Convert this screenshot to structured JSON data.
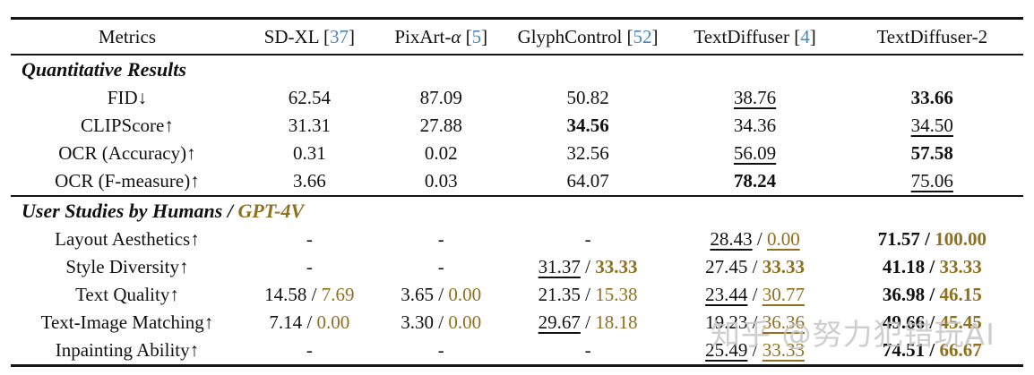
{
  "colors": {
    "citation_blue": "#4d87b8",
    "accent_gold": "#8e701f",
    "watermark_gray": "#c6c6c6",
    "rule_black": "#151515"
  },
  "watermark": {
    "text": "知乎 @努力犯错玩AI"
  },
  "table": {
    "header": {
      "columns": [
        {
          "name": "metrics",
          "segments": [
            {
              "t": "Metrics"
            }
          ]
        },
        {
          "name": "sd-xl",
          "segments": [
            {
              "t": "SD-XL ["
            },
            {
              "t": "37",
              "c": true
            },
            {
              "t": "]"
            }
          ]
        },
        {
          "name": "pixart-alpha",
          "segments": [
            {
              "t": "PixArt-"
            },
            {
              "t": "α",
              "i": true
            },
            {
              "t": " ["
            },
            {
              "t": "5",
              "c": true
            },
            {
              "t": "]"
            }
          ]
        },
        {
          "name": "glyphcontrol",
          "segments": [
            {
              "t": "GlyphControl ["
            },
            {
              "t": "52",
              "c": true
            },
            {
              "t": "]"
            }
          ]
        },
        {
          "name": "textdiffuser",
          "segments": [
            {
              "t": "TextDiffuser ["
            },
            {
              "t": "4",
              "c": true
            },
            {
              "t": "]"
            }
          ]
        },
        {
          "name": "textdiffuser-2",
          "segments": [
            {
              "t": "TextDiffuser-2"
            }
          ]
        }
      ]
    },
    "sections": [
      {
        "title_segments": [
          {
            "t": "Quantitative Results"
          }
        ],
        "rows": [
          {
            "label": "FID↓",
            "cells": [
              [
                {
                  "t": "62.54"
                }
              ],
              [
                {
                  "t": "87.09"
                }
              ],
              [
                {
                  "t": "50.82"
                }
              ],
              [
                {
                  "t": "38.76",
                  "u": true
                }
              ],
              [
                {
                  "t": "33.66",
                  "b": true
                }
              ]
            ]
          },
          {
            "label": "CLIPScore↑",
            "cells": [
              [
                {
                  "t": "31.31"
                }
              ],
              [
                {
                  "t": "27.88"
                }
              ],
              [
                {
                  "t": "34.56",
                  "b": true
                }
              ],
              [
                {
                  "t": "34.36"
                }
              ],
              [
                {
                  "t": "34.50",
                  "u": true
                }
              ]
            ]
          },
          {
            "label": "OCR (Accuracy)↑",
            "cells": [
              [
                {
                  "t": "0.31"
                }
              ],
              [
                {
                  "t": "0.02"
                }
              ],
              [
                {
                  "t": "32.56"
                }
              ],
              [
                {
                  "t": "56.09",
                  "u": true
                }
              ],
              [
                {
                  "t": "57.58",
                  "b": true
                }
              ]
            ]
          },
          {
            "label": "OCR (F-measure)↑",
            "cells": [
              [
                {
                  "t": "3.66"
                }
              ],
              [
                {
                  "t": "0.03"
                }
              ],
              [
                {
                  "t": "64.07"
                }
              ],
              [
                {
                  "t": "78.24",
                  "b": true
                }
              ],
              [
                {
                  "t": "75.06",
                  "u": true
                }
              ]
            ]
          }
        ]
      },
      {
        "title_segments": [
          {
            "t": "User Studies by Humans / "
          },
          {
            "t": "GPT-4V",
            "g": true
          }
        ],
        "rows": [
          {
            "label": "Layout Aesthetics↑",
            "cells": [
              [
                {
                  "t": "-"
                }
              ],
              [
                {
                  "t": "-"
                }
              ],
              [
                {
                  "t": "-"
                }
              ],
              [
                {
                  "t": "28.43",
                  "u": true
                },
                {
                  "t": " / "
                },
                {
                  "t": "0.00",
                  "u": true,
                  "g": true
                }
              ],
              [
                {
                  "t": "71.57",
                  "b": true
                },
                {
                  "t": " / ",
                  "b": true
                },
                {
                  "t": "100.00",
                  "b": true,
                  "g": true
                }
              ]
            ]
          },
          {
            "label": "Style Diversity↑",
            "cells": [
              [
                {
                  "t": "-"
                }
              ],
              [
                {
                  "t": "-"
                }
              ],
              [
                {
                  "t": "31.37",
                  "u": true
                },
                {
                  "t": " / "
                },
                {
                  "t": "33.33",
                  "b": true,
                  "g": true
                }
              ],
              [
                {
                  "t": "27.45"
                },
                {
                  "t": " / "
                },
                {
                  "t": "33.33",
                  "b": true,
                  "g": true
                }
              ],
              [
                {
                  "t": "41.18",
                  "b": true
                },
                {
                  "t": " / ",
                  "b": true
                },
                {
                  "t": "33.33",
                  "b": true,
                  "g": true
                }
              ]
            ]
          },
          {
            "label": "Text Quality↑",
            "cells": [
              [
                {
                  "t": "14.58"
                },
                {
                  "t": " / "
                },
                {
                  "t": "7.69",
                  "g": true
                }
              ],
              [
                {
                  "t": "3.65"
                },
                {
                  "t": " / "
                },
                {
                  "t": "0.00",
                  "g": true
                }
              ],
              [
                {
                  "t": "21.35"
                },
                {
                  "t": " / "
                },
                {
                  "t": "15.38",
                  "g": true
                }
              ],
              [
                {
                  "t": "23.44",
                  "u": true
                },
                {
                  "t": " / "
                },
                {
                  "t": "30.77",
                  "u": true,
                  "g": true
                }
              ],
              [
                {
                  "t": "36.98",
                  "b": true
                },
                {
                  "t": " / ",
                  "b": true
                },
                {
                  "t": "46.15",
                  "b": true,
                  "g": true
                }
              ]
            ]
          },
          {
            "label": "Text-Image Matching↑",
            "cells": [
              [
                {
                  "t": "7.14"
                },
                {
                  "t": " / "
                },
                {
                  "t": "0.00",
                  "g": true
                }
              ],
              [
                {
                  "t": "3.30"
                },
                {
                  "t": " / "
                },
                {
                  "t": "0.00",
                  "g": true
                }
              ],
              [
                {
                  "t": "29.67",
                  "u": true
                },
                {
                  "t": " / "
                },
                {
                  "t": "18.18",
                  "g": true
                }
              ],
              [
                {
                  "t": "19.23"
                },
                {
                  "t": " / "
                },
                {
                  "t": "36.36",
                  "u": true,
                  "g": true
                }
              ],
              [
                {
                  "t": "49.66",
                  "b": true
                },
                {
                  "t": " / ",
                  "b": true
                },
                {
                  "t": "45.45",
                  "b": true,
                  "g": true
                }
              ]
            ]
          },
          {
            "label": "Inpainting Ability↑",
            "cells": [
              [
                {
                  "t": "-"
                }
              ],
              [
                {
                  "t": "-"
                }
              ],
              [
                {
                  "t": "-"
                }
              ],
              [
                {
                  "t": "25.49",
                  "u": true
                },
                {
                  "t": " / "
                },
                {
                  "t": "33.33",
                  "u": true,
                  "g": true
                }
              ],
              [
                {
                  "t": "74.51",
                  "b": true
                },
                {
                  "t": " / ",
                  "b": true
                },
                {
                  "t": "66.67",
                  "b": true,
                  "g": true
                }
              ]
            ]
          }
        ]
      }
    ]
  }
}
